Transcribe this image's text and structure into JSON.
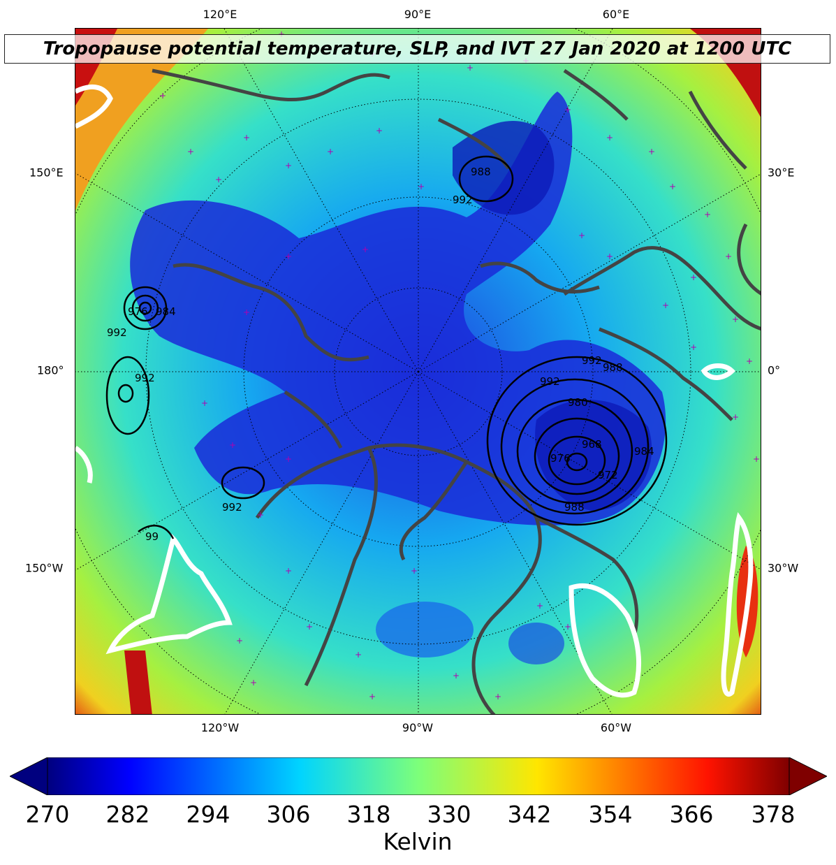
{
  "title": "Tropopause potential temperature, SLP, and IVT 27 Jan 2020 at 1200 UTC",
  "map": {
    "projection": "north-polar-stereographic",
    "top_lon_labels": [
      "120°E",
      "90°E",
      "60°E"
    ],
    "bottom_lon_labels": [
      "120°W",
      "90°W",
      "60°W"
    ],
    "left_labels": [
      "150°E",
      "180°",
      "150°W"
    ],
    "right_labels": [
      "30°E",
      "0°",
      "30°W"
    ],
    "slp_contour_labels": [
      "988",
      "992",
      "992",
      "988",
      "980",
      "968",
      "972",
      "976",
      "984",
      "988",
      "992",
      "992",
      "992",
      "992",
      "976",
      "984",
      "99"
    ],
    "coastline_color": "#444444",
    "station_marker_color": "#b000b0",
    "ivt_contour_color": "#ffffff"
  },
  "colorbar": {
    "colormap": "jet",
    "extend": "both",
    "vmin": 270,
    "vmax": 378,
    "tick_labels": [
      "270",
      "282",
      "294",
      "306",
      "318",
      "330",
      "342",
      "354",
      "366",
      "378"
    ],
    "unit": "Kelvin"
  }
}
